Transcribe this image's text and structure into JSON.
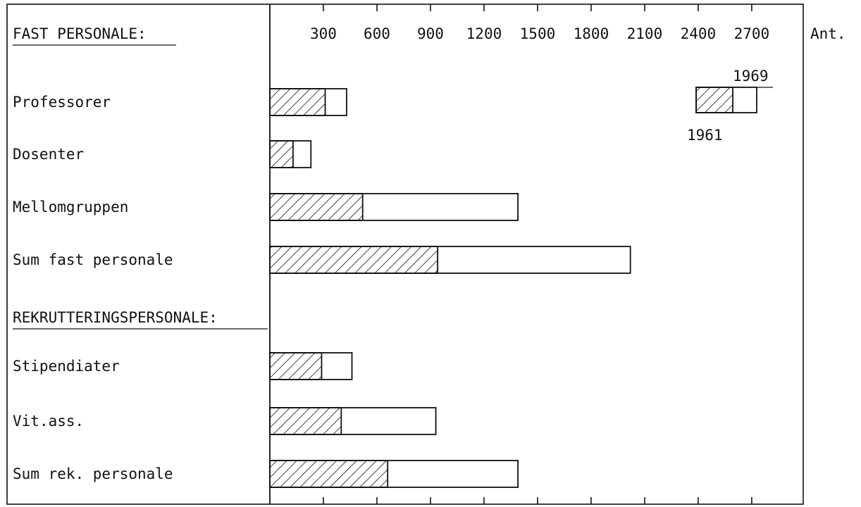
{
  "chart_data": {
    "type": "bar",
    "title": "",
    "xlabel": "Ant.",
    "ylabel": "",
    "xlim": [
      0,
      2900
    ],
    "ticks": [
      300,
      600,
      900,
      1200,
      1500,
      1800,
      2100,
      2400,
      2700
    ],
    "tick_labels": [
      "300",
      "600",
      "900",
      "1200",
      "1500",
      "1800",
      "2100",
      "2400",
      "2700"
    ],
    "unit_label": "Ant.",
    "sections": [
      {
        "label": "FAST PERSONALE:",
        "after_row": -1
      },
      {
        "label": "REKRUTTERINGSPERSONALE:",
        "after_row": 3
      }
    ],
    "categories": [
      "Professorer",
      "Dosenter",
      "Mellomgruppen",
      "Sum fast personale",
      "Stipendiater",
      "Vit.ass.",
      "Sum rek. personale"
    ],
    "series": [
      {
        "name": "1961",
        "pattern": "hatched",
        "values": [
          310,
          130,
          520,
          940,
          290,
          400,
          660
        ]
      },
      {
        "name": "1969",
        "pattern": "open",
        "values": [
          430,
          230,
          1390,
          2020,
          460,
          930,
          1390
        ]
      }
    ],
    "legend": {
      "position": "top-right",
      "upper_label": "1969",
      "lower_label": "1961"
    }
  }
}
